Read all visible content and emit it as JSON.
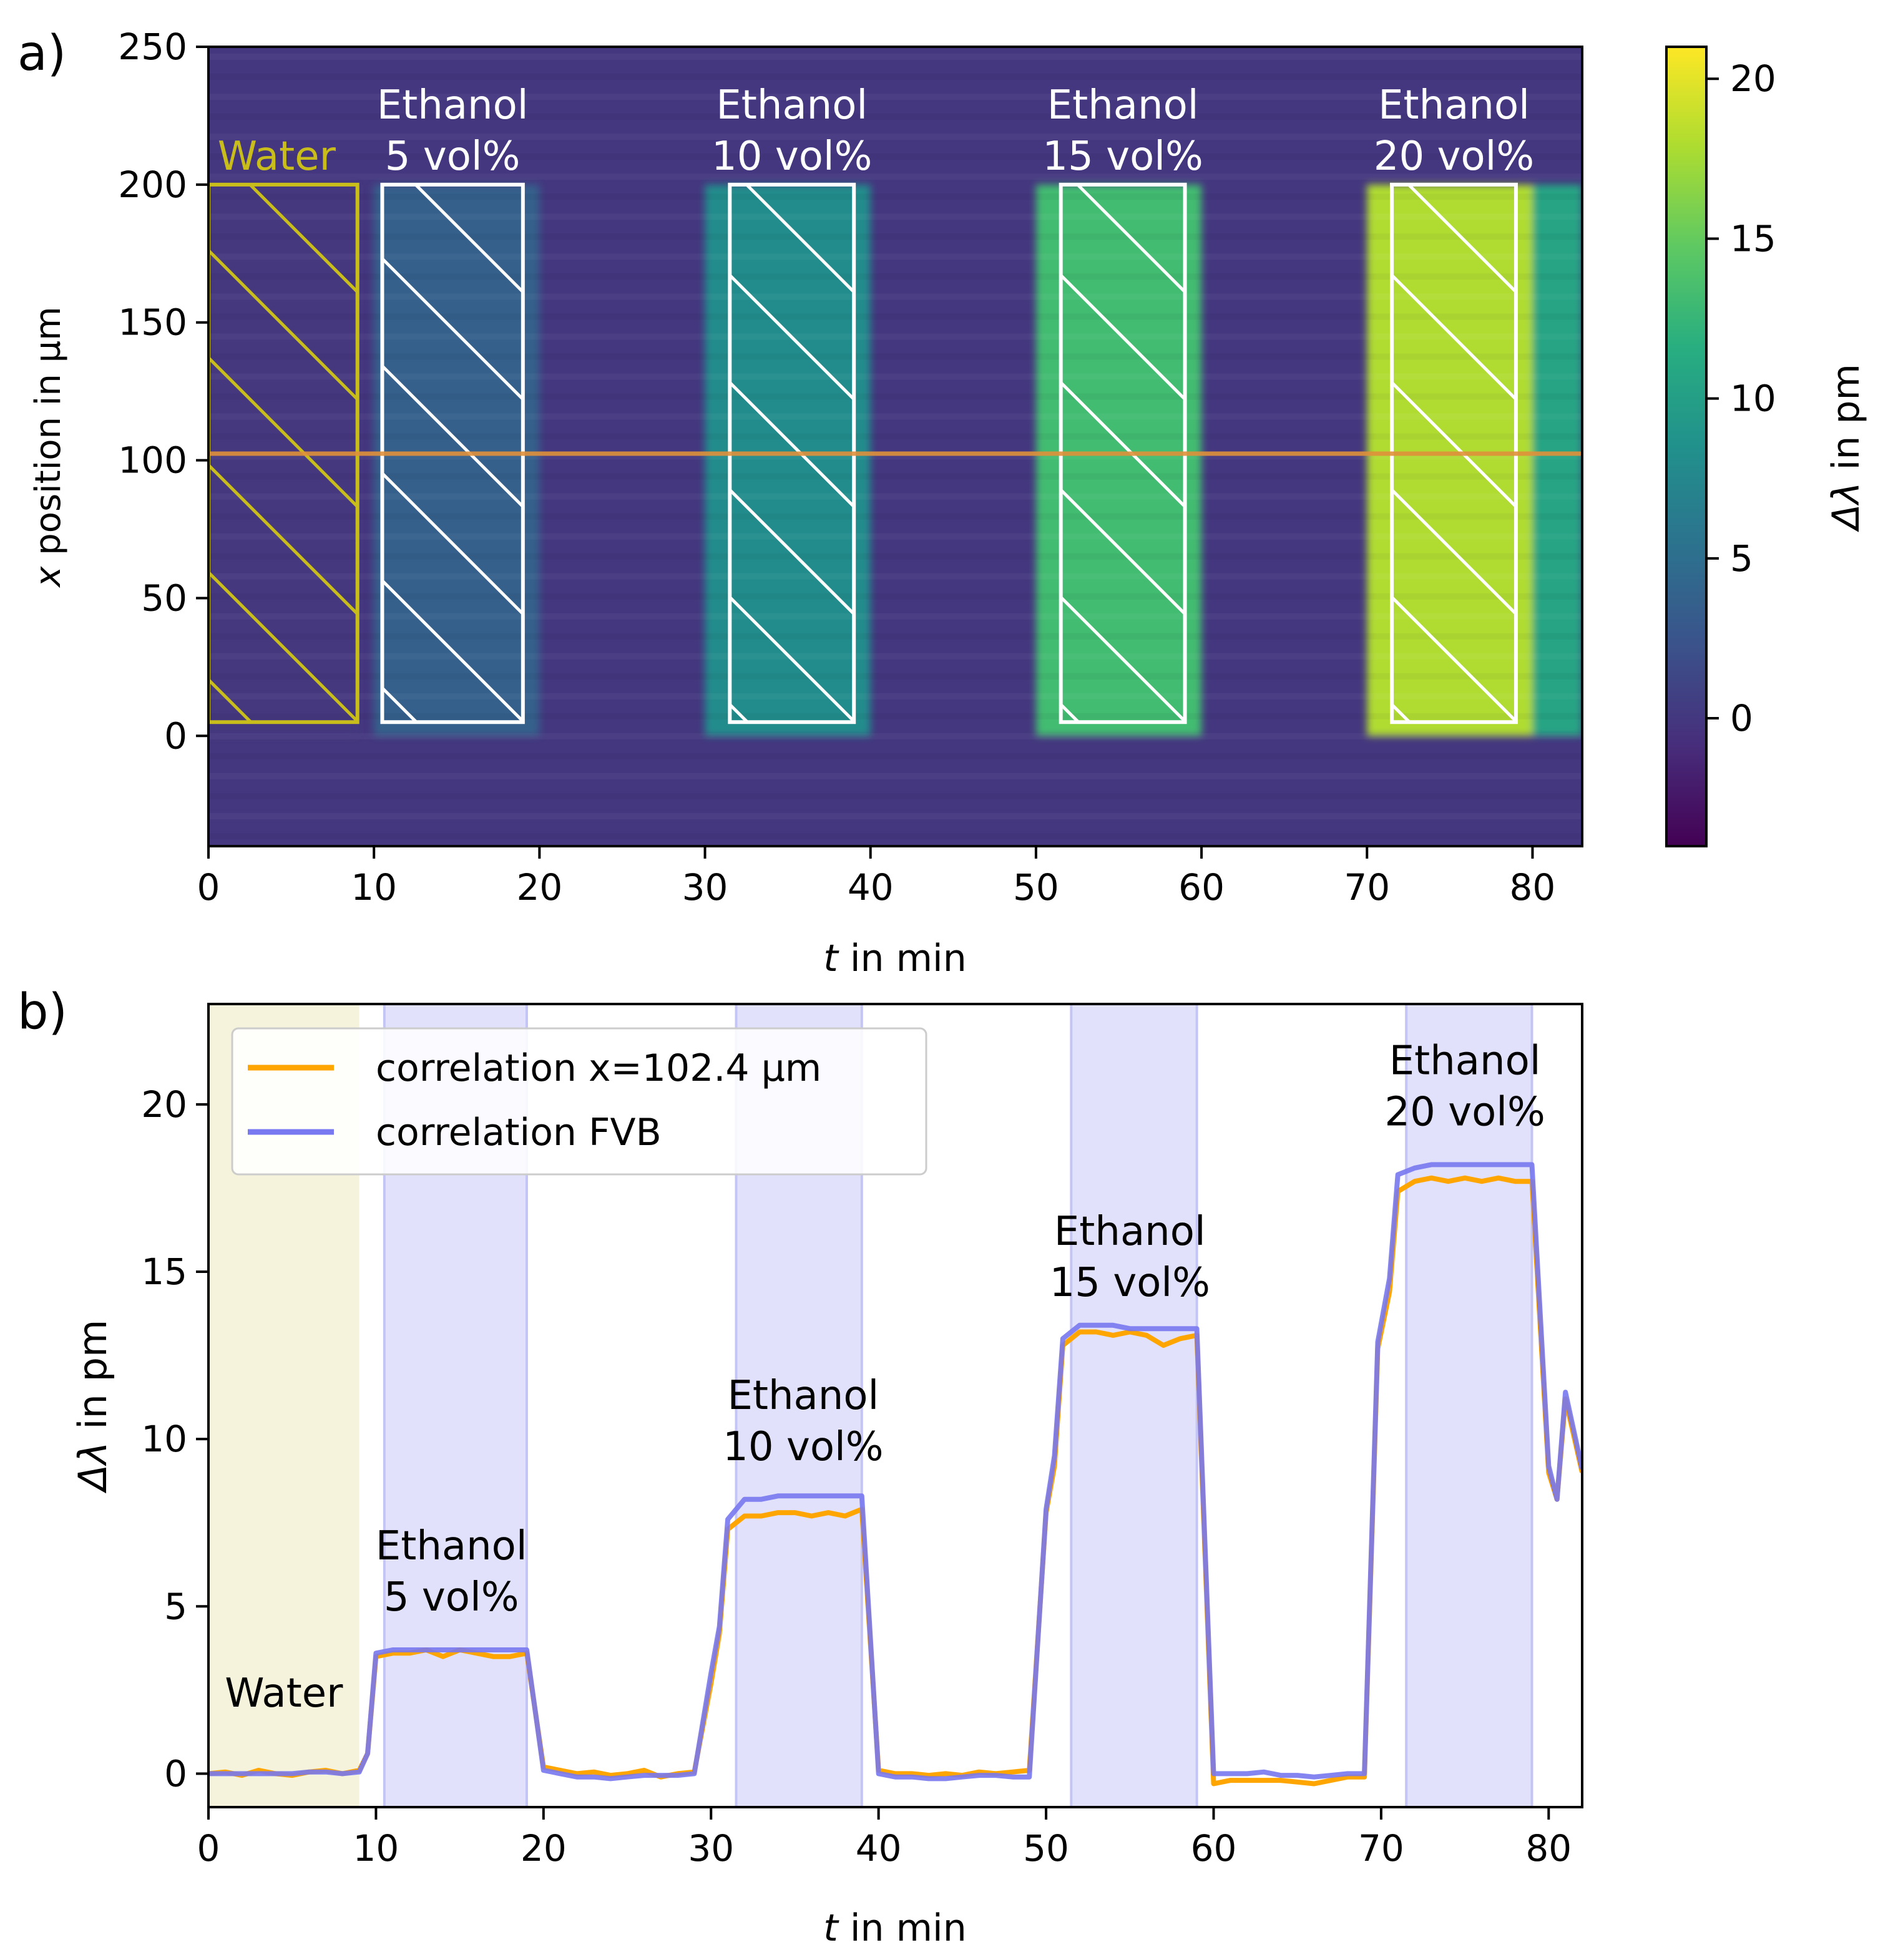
{
  "chart_data": [
    {
      "type": "heatmap",
      "panel_label": "a)",
      "xlabel_italic": "t",
      "xlabel_rest": " in min",
      "ylabel_italic": "x",
      "ylabel_rest": " position in µm",
      "xlim": [
        0,
        83
      ],
      "ylim": [
        -40,
        250
      ],
      "xticks": [
        0,
        10,
        20,
        30,
        40,
        50,
        60,
        70,
        80
      ],
      "yticks": [
        0,
        50,
        100,
        150,
        200,
        250
      ],
      "colorbar": {
        "label_italic": "Δλ",
        "label_rest": " in pm",
        "range": [
          -4,
          21
        ],
        "ticks": [
          0,
          5,
          10,
          15,
          20
        ],
        "colormap": "viridis"
      },
      "baseline_value_pm": 0,
      "signal_band_x_um": [
        0,
        200
      ],
      "plateaus": [
        {
          "t_start": 0,
          "t_end": 9,
          "value_pm": 0
        },
        {
          "t_start": 10,
          "t_end": 20,
          "value_pm": 3.7
        },
        {
          "t_start": 30,
          "t_end": 40,
          "value_pm": 8.0
        },
        {
          "t_start": 50,
          "t_end": 60,
          "value_pm": 13.2
        },
        {
          "t_start": 70,
          "t_end": 80,
          "value_pm": 18.0
        },
        {
          "t_start": 80,
          "t_end": 83,
          "value_pm": 10.5
        }
      ],
      "line_position_um": 102.4,
      "line_color": "#e0913a",
      "regions": [
        {
          "label": "Water",
          "line1": "Water",
          "line2": "",
          "t_start": 0,
          "t_end": 9,
          "x_start": 5,
          "x_end": 200,
          "color": "#c8bd1a"
        },
        {
          "label": "Ethanol 5 vol%",
          "line1": "Ethanol",
          "line2": "5 vol%",
          "t_start": 10.5,
          "t_end": 19,
          "x_start": 5,
          "x_end": 200,
          "color": "#ffffff"
        },
        {
          "label": "Ethanol 10 vol%",
          "line1": "Ethanol",
          "line2": "10 vol%",
          "t_start": 31.5,
          "t_end": 39,
          "x_start": 5,
          "x_end": 200,
          "color": "#ffffff"
        },
        {
          "label": "Ethanol 15 vol%",
          "line1": "Ethanol",
          "line2": "15 vol%",
          "t_start": 51.5,
          "t_end": 59,
          "x_start": 5,
          "x_end": 200,
          "color": "#ffffff"
        },
        {
          "label": "Ethanol 20 vol%",
          "line1": "Ethanol",
          "line2": "20 vol%",
          "t_start": 71.5,
          "t_end": 79,
          "x_start": 5,
          "x_end": 200,
          "color": "#ffffff"
        }
      ]
    },
    {
      "type": "line",
      "panel_label": "b)",
      "xlabel_italic": "t",
      "xlabel_rest": " in min",
      "ylabel_italic": "Δλ",
      "ylabel_rest": " in pm",
      "xlim": [
        0,
        82
      ],
      "ylim": [
        -1,
        23
      ],
      "xticks": [
        0,
        10,
        20,
        30,
        40,
        50,
        60,
        70,
        80
      ],
      "yticks": [
        0,
        5,
        10,
        15,
        20
      ],
      "legend_position": "top-left",
      "spans": [
        {
          "kind": "water",
          "t_start": 0,
          "t_end": 9,
          "color": "#f5f3dc"
        },
        {
          "kind": "ethanol",
          "t_start": 10.5,
          "t_end": 19,
          "color": "#e1e1fb"
        },
        {
          "kind": "ethanol",
          "t_start": 31.5,
          "t_end": 39,
          "color": "#e1e1fb"
        },
        {
          "kind": "ethanol",
          "t_start": 51.5,
          "t_end": 59,
          "color": "#e1e1fb"
        },
        {
          "kind": "ethanol",
          "t_start": 71.5,
          "t_end": 79,
          "color": "#e1e1fb"
        }
      ],
      "annotations": [
        {
          "line1": "Water",
          "line2": "",
          "t": 4.5,
          "y": 2.0
        },
        {
          "line1": "Ethanol",
          "line2": "5 vol%",
          "t": 14.5,
          "y": 6.4
        },
        {
          "line1": "Ethanol",
          "line2": "10 vol%",
          "t": 35.5,
          "y": 10.9
        },
        {
          "line1": "Ethanol",
          "line2": "15 vol%",
          "t": 55.0,
          "y": 15.8
        },
        {
          "line1": "Ethanol",
          "line2": "20 vol%",
          "t": 75.0,
          "y": 20.9
        }
      ],
      "series": [
        {
          "name": "correlation x=102.4 µm",
          "color": "#ffa500",
          "x": [
            0,
            1,
            2,
            3,
            4,
            5,
            6,
            7,
            8,
            9,
            9.5,
            10,
            11,
            12,
            13,
            14,
            15,
            16,
            17,
            18,
            19,
            20,
            21,
            22,
            23,
            24,
            25,
            26,
            27,
            28,
            29,
            30,
            30.5,
            31,
            32,
            33,
            34,
            35,
            36,
            37,
            38,
            39,
            40,
            41,
            42,
            43,
            44,
            45,
            46,
            47,
            48,
            49,
            50,
            50.5,
            51,
            52,
            53,
            54,
            55,
            56,
            57,
            58,
            59,
            60,
            61,
            62,
            63,
            64,
            65,
            66,
            67,
            68,
            69,
            69.8,
            70.5,
            71,
            72,
            73,
            74,
            75,
            76,
            77,
            78,
            79,
            80,
            80.5,
            81,
            82
          ],
          "values": [
            0.0,
            0.05,
            -0.05,
            0.1,
            0.0,
            -0.05,
            0.05,
            0.1,
            0.0,
            0.1,
            0.6,
            3.5,
            3.6,
            3.6,
            3.7,
            3.5,
            3.7,
            3.6,
            3.5,
            3.5,
            3.6,
            0.2,
            0.1,
            0.0,
            0.05,
            -0.05,
            0.0,
            0.1,
            -0.1,
            0.0,
            0.05,
            2.7,
            4.2,
            7.3,
            7.7,
            7.7,
            7.8,
            7.8,
            7.7,
            7.8,
            7.7,
            7.9,
            0.1,
            0.0,
            0.0,
            -0.05,
            0.0,
            -0.05,
            0.05,
            0.0,
            0.05,
            0.1,
            7.8,
            9.2,
            12.8,
            13.2,
            13.2,
            13.1,
            13.2,
            13.1,
            12.8,
            13.0,
            13.1,
            -0.3,
            -0.2,
            -0.2,
            -0.2,
            -0.2,
            -0.25,
            -0.3,
            -0.2,
            -0.1,
            -0.1,
            12.7,
            14.4,
            17.4,
            17.7,
            17.8,
            17.7,
            17.8,
            17.7,
            17.8,
            17.7,
            17.7,
            9.0,
            8.2,
            11.2,
            9.0
          ]
        },
        {
          "name": "correlation FVB",
          "color": "#7878f0",
          "x": [
            0,
            1,
            2,
            3,
            4,
            5,
            6,
            7,
            8,
            9,
            9.5,
            10,
            11,
            12,
            13,
            14,
            15,
            16,
            17,
            18,
            19,
            20,
            21,
            22,
            23,
            24,
            25,
            26,
            27,
            28,
            29,
            30,
            30.5,
            31,
            32,
            33,
            34,
            35,
            36,
            37,
            38,
            39,
            40,
            41,
            42,
            43,
            44,
            45,
            46,
            47,
            48,
            49,
            50,
            50.5,
            51,
            52,
            53,
            54,
            55,
            56,
            57,
            58,
            59,
            60,
            61,
            62,
            63,
            64,
            65,
            66,
            67,
            68,
            69,
            69.8,
            70.5,
            71,
            72,
            73,
            74,
            75,
            76,
            77,
            78,
            79,
            80,
            80.5,
            81,
            82
          ],
          "values": [
            0.0,
            0.0,
            0.0,
            0.0,
            0.0,
            0.0,
            0.05,
            0.05,
            0.0,
            0.05,
            0.6,
            3.6,
            3.7,
            3.7,
            3.7,
            3.7,
            3.7,
            3.7,
            3.7,
            3.7,
            3.7,
            0.1,
            0.0,
            -0.1,
            -0.1,
            -0.15,
            -0.1,
            -0.05,
            -0.05,
            -0.05,
            0.0,
            3.0,
            4.4,
            7.6,
            8.2,
            8.2,
            8.3,
            8.3,
            8.3,
            8.3,
            8.3,
            8.3,
            0.0,
            -0.1,
            -0.1,
            -0.15,
            -0.15,
            -0.1,
            -0.05,
            -0.05,
            -0.1,
            -0.1,
            7.9,
            9.5,
            13.0,
            13.4,
            13.4,
            13.4,
            13.3,
            13.3,
            13.3,
            13.3,
            13.3,
            0.0,
            0.0,
            0.0,
            0.05,
            -0.05,
            -0.05,
            -0.1,
            -0.05,
            0.0,
            0.0,
            12.9,
            14.8,
            17.9,
            18.1,
            18.2,
            18.2,
            18.2,
            18.2,
            18.2,
            18.2,
            18.2,
            9.2,
            8.2,
            11.4,
            9.1
          ]
        }
      ]
    }
  ]
}
